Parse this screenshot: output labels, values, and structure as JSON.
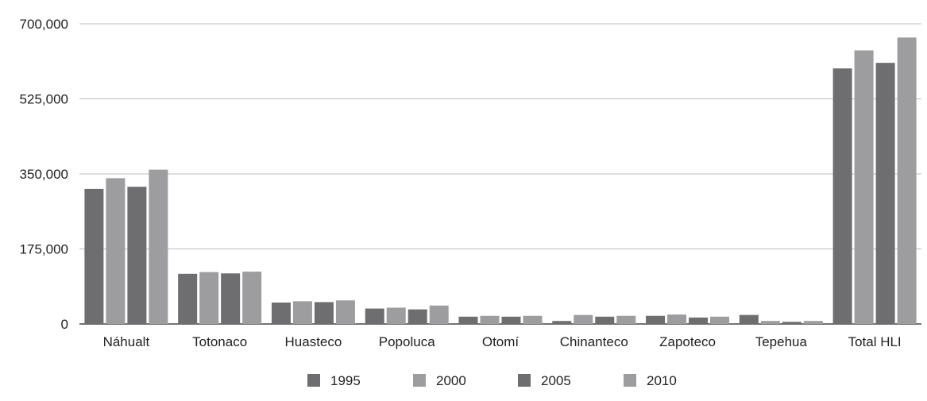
{
  "chart_data": {
    "type": "bar",
    "categories": [
      "Náhualt",
      "Totonaco",
      "Huasteco",
      "Popoluca",
      "Otomí",
      "Chinanteco",
      "Zapoteco",
      "Tepehua",
      "Total HLI"
    ],
    "series": [
      {
        "name": "1995",
        "color": "#6e6e70",
        "values": [
          315000,
          117000,
          50000,
          36000,
          17000,
          7000,
          19000,
          21000,
          596000
        ]
      },
      {
        "name": "2000",
        "color": "#9d9d9f",
        "values": [
          340000,
          121000,
          53000,
          38000,
          19000,
          21000,
          22000,
          7000,
          638000
        ]
      },
      {
        "name": "2005",
        "color": "#6e6e70",
        "values": [
          320000,
          118000,
          51000,
          34000,
          17000,
          17000,
          15000,
          5000,
          609000
        ]
      },
      {
        "name": "2010",
        "color": "#9d9d9f",
        "values": [
          360000,
          122000,
          55000,
          43000,
          19000,
          19000,
          17000,
          7000,
          668000
        ]
      }
    ],
    "ylim": [
      0,
      700000
    ],
    "yticks": [
      0,
      175000,
      350000,
      525000,
      700000
    ],
    "ytick_labels": [
      "0",
      "175,000",
      "350,000",
      "525,000",
      "700,000"
    ],
    "grid": true,
    "legend_position": "bottom"
  }
}
